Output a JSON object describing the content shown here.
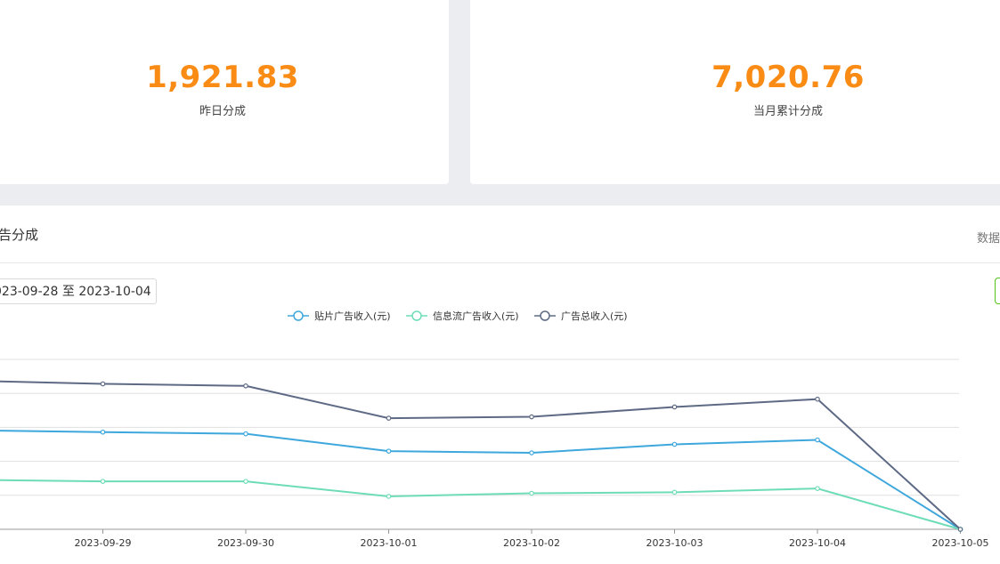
{
  "stats": {
    "yesterday": {
      "value": "1,921.83",
      "label": "昨日分成"
    },
    "month": {
      "value": "7,020.76",
      "label": "当月累计分成"
    }
  },
  "panel": {
    "title": "告分成",
    "right_text": "数据",
    "date_range": "023-09-28 至 2023-10-04"
  },
  "colors": {
    "accent": "#fa8c16",
    "series1": "#3ea7dc",
    "series2": "#6fdcb8",
    "series3": "#5e6a85"
  },
  "chart_data": {
    "type": "line",
    "x": [
      "2023-09-28",
      "2023-09-29",
      "2023-09-30",
      "2023-10-01",
      "2023-10-02",
      "2023-10-03",
      "2023-10-04",
      "2023-10-05"
    ],
    "x_tick_labels": [
      "2023-09-29",
      "2023-09-30",
      "2023-10-01",
      "2023-10-02",
      "2023-10-03",
      "2023-10-04",
      "2023-10-05"
    ],
    "ylim": [
      0,
      5
    ],
    "grid": true,
    "legend": "top-center",
    "series": [
      {
        "name": "贴片广告收入(元)",
        "color": "#3ea7dc",
        "values": [
          2.92,
          2.86,
          2.81,
          2.3,
          2.25,
          2.5,
          2.63,
          0
        ]
      },
      {
        "name": "信息流广告收入(元)",
        "color": "#6fdcb8",
        "values": [
          1.46,
          1.41,
          1.41,
          0.97,
          1.06,
          1.09,
          1.2,
          0
        ]
      },
      {
        "name": "广告总收入(元)",
        "color": "#5e6a85",
        "values": [
          4.38,
          4.28,
          4.22,
          3.27,
          3.31,
          3.6,
          3.83,
          0
        ]
      }
    ]
  }
}
